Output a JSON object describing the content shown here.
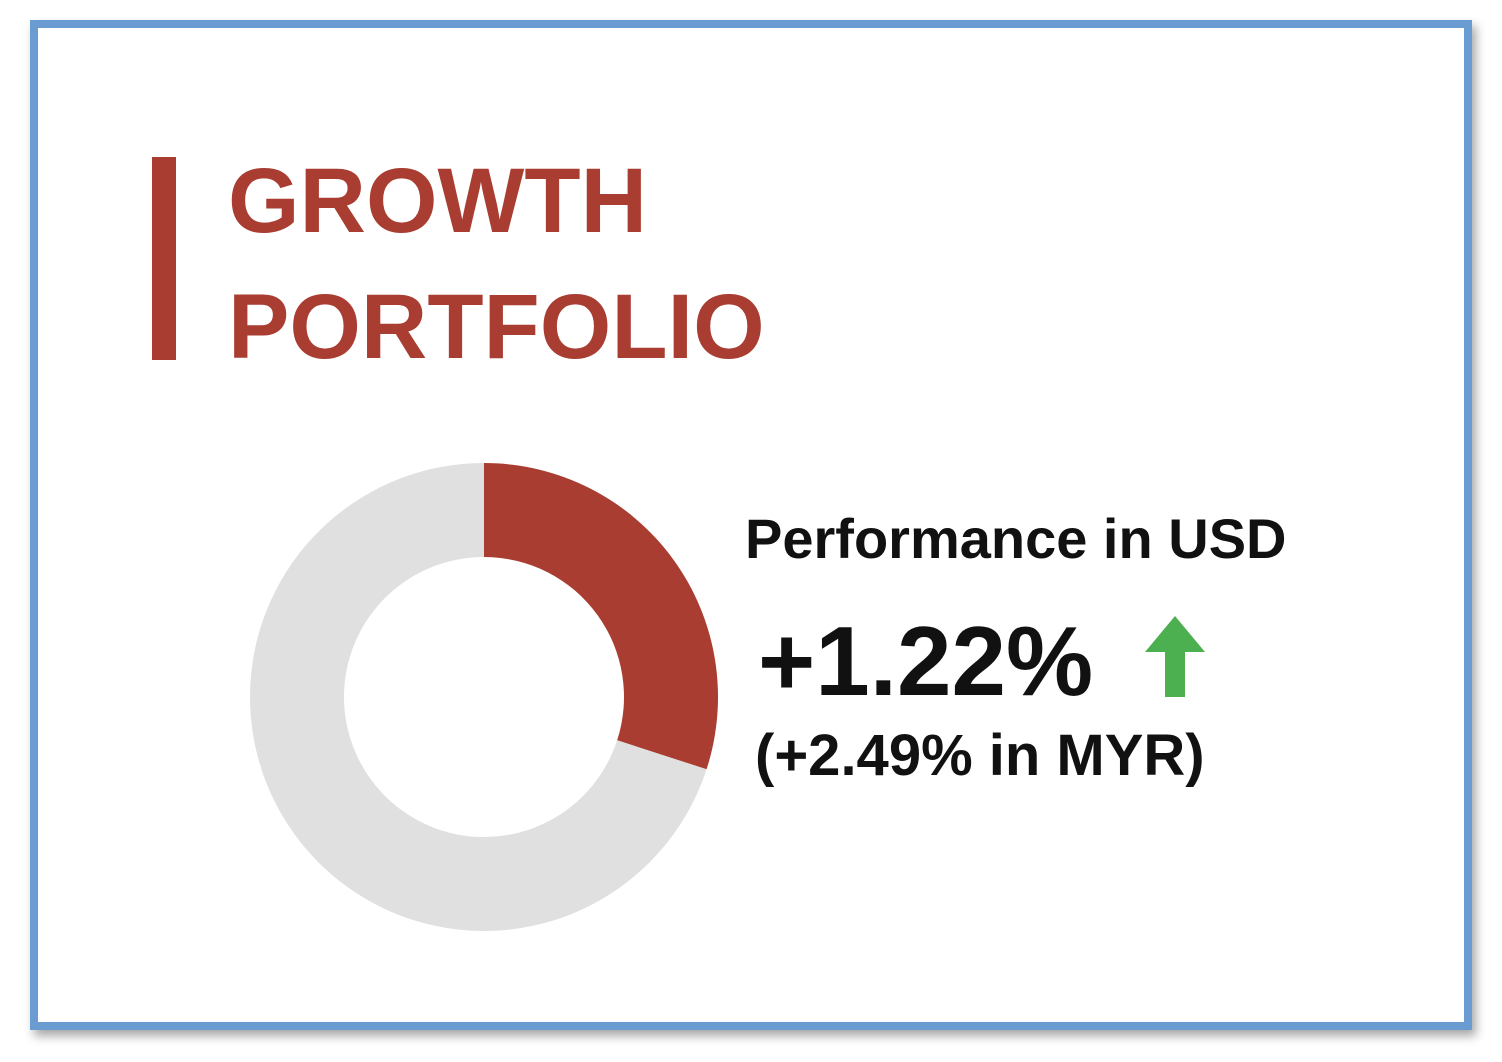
{
  "chart_data": {
    "type": "donut",
    "title": [
      "GROWTH",
      "PORTFOLIO"
    ],
    "values": [
      30,
      70
    ],
    "colors": [
      "#a93d31",
      "#e0e0e0"
    ],
    "annotations": [
      "Performance in USD",
      "+1.22%",
      "(+2.49% in MYR)"
    ]
  }
}
